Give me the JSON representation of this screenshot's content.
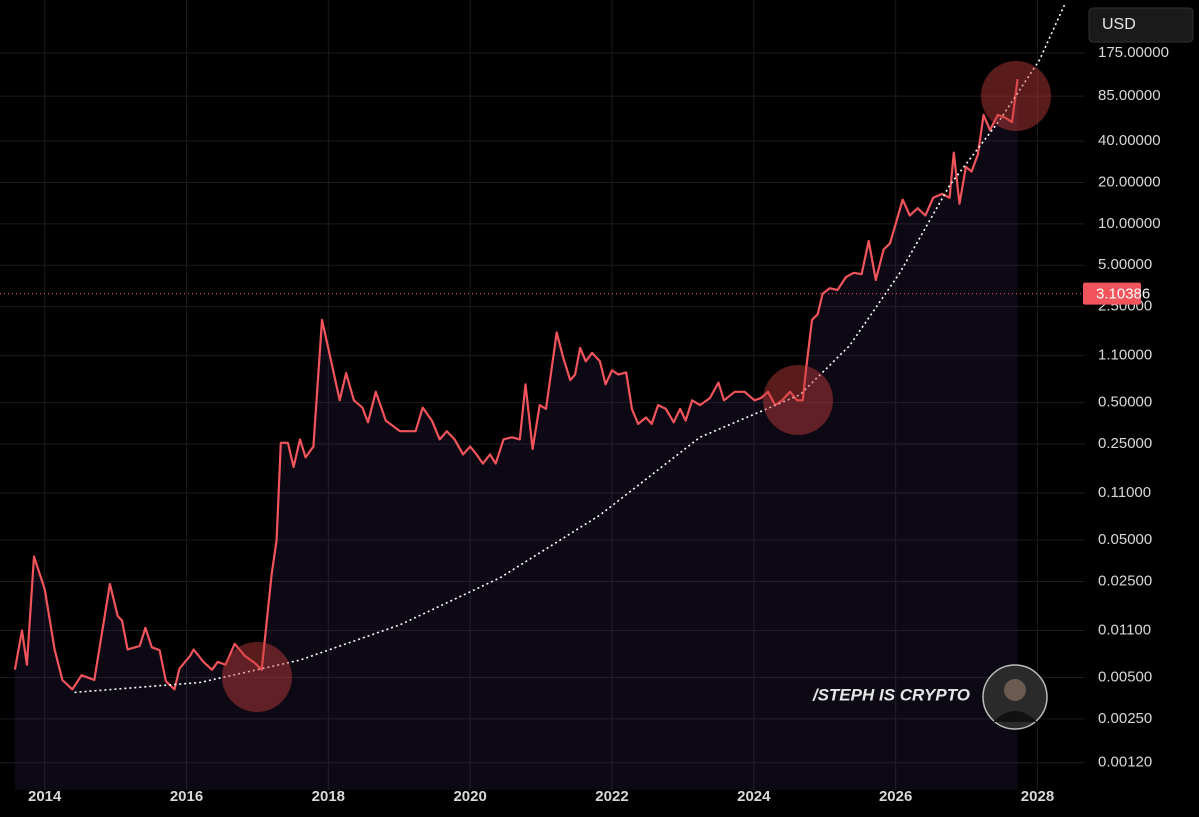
{
  "chart_data": {
    "type": "line",
    "currency": "USD",
    "watermark": "/STEPH IS CRYPTO",
    "log_scale": true,
    "grid": true,
    "current_price": 3.10386,
    "current_price_color": "#f2545b",
    "xlim": [
      2013.37,
      2028.67
    ],
    "xticks": [
      2014,
      2016,
      2018,
      2020,
      2022,
      2024,
      2026,
      2028
    ],
    "ylim": [
      0.00076,
      425
    ],
    "yticks": [
      {
        "value": 175,
        "label": "175.00000"
      },
      {
        "value": 85,
        "label": "85.00000"
      },
      {
        "value": 40,
        "label": "40.00000"
      },
      {
        "value": 20,
        "label": "20.00000"
      },
      {
        "value": 10,
        "label": "10.00000"
      },
      {
        "value": 5,
        "label": "5.00000"
      },
      {
        "value": 2.5,
        "label": "2.50000"
      },
      {
        "value": 1.1,
        "label": "1.10000"
      },
      {
        "value": 0.5,
        "label": "0.50000"
      },
      {
        "value": 0.25,
        "label": "0.25000"
      },
      {
        "value": 0.11,
        "label": "0.11000"
      },
      {
        "value": 0.05,
        "label": "0.05000"
      },
      {
        "value": 0.025,
        "label": "0.02500"
      },
      {
        "value": 0.011,
        "label": "0.01100"
      },
      {
        "value": 0.005,
        "label": "0.00500"
      },
      {
        "value": 0.0025,
        "label": "0.00250"
      },
      {
        "value": 0.0012,
        "label": "0.00120"
      }
    ],
    "series": [
      {
        "color": "#f2545b",
        "x": [
          2013.58,
          2013.68,
          2013.75,
          2013.85,
          2014.0,
          2014.14,
          2014.25,
          2014.39,
          2014.52,
          2014.7,
          2014.92,
          2015.03,
          2015.09,
          2015.17,
          2015.34,
          2015.42,
          2015.51,
          2015.62,
          2015.71,
          2015.83,
          2015.9,
          2016.05,
          2016.1,
          2016.24,
          2016.36,
          2016.44,
          2016.55,
          2016.68,
          2016.82,
          2016.96,
          2017.06,
          2017.2,
          2017.27,
          2017.33,
          2017.43,
          2017.51,
          2017.6,
          2017.68,
          2017.79,
          2017.91,
          2018.02,
          2018.16,
          2018.25,
          2018.36,
          2018.48,
          2018.56,
          2018.67,
          2018.81,
          2019.01,
          2019.23,
          2019.33,
          2019.46,
          2019.57,
          2019.67,
          2019.78,
          2019.9,
          2020.0,
          2020.09,
          2020.18,
          2020.28,
          2020.36,
          2020.47,
          2020.59,
          2020.7,
          2020.78,
          2020.88,
          2020.98,
          2021.07,
          2021.22,
          2021.31,
          2021.41,
          2021.48,
          2021.55,
          2021.63,
          2021.72,
          2021.83,
          2021.91,
          2022.0,
          2022.09,
          2022.2,
          2022.28,
          2022.37,
          2022.48,
          2022.56,
          2022.65,
          2022.76,
          2022.87,
          2022.96,
          2023.04,
          2023.13,
          2023.24,
          2023.38,
          2023.5,
          2023.58,
          2023.73,
          2023.87,
          2024.01,
          2024.1,
          2024.2,
          2024.3,
          2024.4,
          2024.51,
          2024.61,
          2024.69,
          2024.73,
          2024.82,
          2024.9,
          2024.97,
          2025.07,
          2025.18,
          2025.3,
          2025.41,
          2025.52,
          2025.62,
          2025.72,
          2025.83,
          2025.92,
          2026.0,
          2026.1,
          2026.2,
          2026.31,
          2026.42,
          2026.53,
          2026.65,
          2026.76,
          2026.82,
          2026.9,
          2026.99,
          2027.07,
          2027.16,
          2027.24,
          2027.33,
          2027.44,
          2027.55,
          2027.64,
          2027.72
        ],
        "values": [
          0.0057,
          0.011,
          0.0062,
          0.038,
          0.022,
          0.008,
          0.0048,
          0.0041,
          0.0052,
          0.0048,
          0.024,
          0.014,
          0.013,
          0.008,
          0.0085,
          0.0115,
          0.0083,
          0.0079,
          0.0047,
          0.0041,
          0.0058,
          0.0072,
          0.008,
          0.0065,
          0.0057,
          0.0065,
          0.0062,
          0.0088,
          0.0072,
          0.0064,
          0.0057,
          0.028,
          0.05,
          0.255,
          0.255,
          0.17,
          0.27,
          0.2,
          0.24,
          2.0,
          1.11,
          0.52,
          0.82,
          0.52,
          0.46,
          0.36,
          0.6,
          0.37,
          0.31,
          0.31,
          0.46,
          0.37,
          0.27,
          0.31,
          0.27,
          0.21,
          0.24,
          0.21,
          0.18,
          0.21,
          0.18,
          0.27,
          0.28,
          0.27,
          0.68,
          0.23,
          0.48,
          0.45,
          1.62,
          1.07,
          0.73,
          0.8,
          1.25,
          1.0,
          1.15,
          1.0,
          0.68,
          0.86,
          0.8,
          0.83,
          0.45,
          0.35,
          0.39,
          0.35,
          0.48,
          0.45,
          0.36,
          0.45,
          0.37,
          0.52,
          0.48,
          0.54,
          0.7,
          0.52,
          0.6,
          0.6,
          0.52,
          0.54,
          0.6,
          0.48,
          0.52,
          0.6,
          0.52,
          0.52,
          0.82,
          2.0,
          2.2,
          3.1,
          3.4,
          3.3,
          4.1,
          4.4,
          4.3,
          7.5,
          3.9,
          6.5,
          7.2,
          10,
          15,
          11.5,
          13,
          11.5,
          15.5,
          16.5,
          15.5,
          33,
          14,
          26,
          24,
          32,
          62,
          48,
          62,
          59,
          55,
          113
        ]
      },
      {
        "color": "#ffffff",
        "x": [
          2014.42,
          2016.19,
          2017.6,
          2019.01,
          2020.42,
          2021.83,
          2023.24,
          2024.65,
          2025.35,
          2026.06,
          2026.76,
          2027.47,
          2028.03,
          2028.38
        ],
        "values": [
          0.0039,
          0.0046,
          0.0067,
          0.0121,
          0.0266,
          0.076,
          0.28,
          0.57,
          1.3,
          4.4,
          19,
          57,
          156,
          390
        ]
      }
    ]
  }
}
